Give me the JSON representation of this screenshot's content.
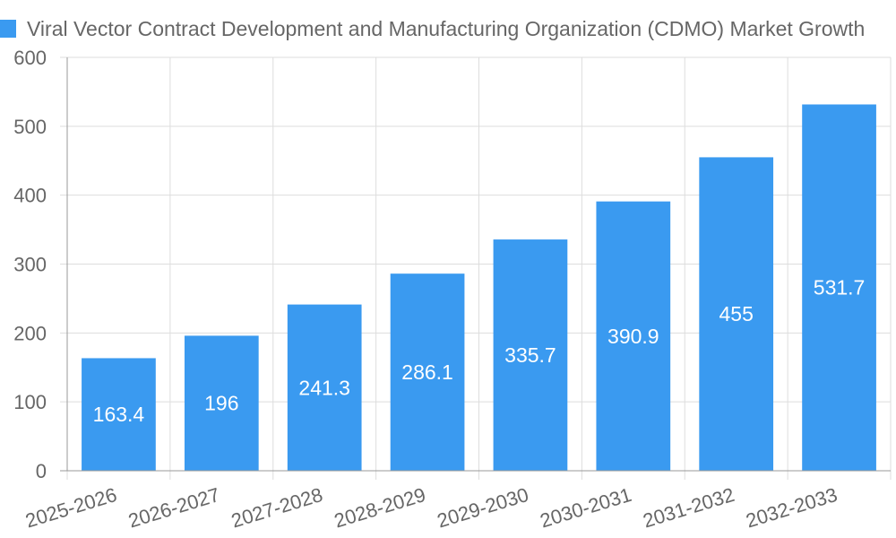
{
  "chart_data": {
    "type": "bar",
    "legend": {
      "label": "Viral Vector Contract Development and Manufacturing Organization (CDMO) Market Growth",
      "placement": "top-left"
    },
    "categories": [
      "2025-2026",
      "2026-2027",
      "2027-2028",
      "2028-2029",
      "2029-2030",
      "2030-2031",
      "2031-2032",
      "2032-2033"
    ],
    "series": [
      {
        "name": "Viral Vector Contract Development and Manufacturing Organization (CDMO) Market Growth",
        "values": [
          163.4,
          196,
          241.3,
          286.1,
          335.7,
          390.9,
          455,
          531.7
        ]
      }
    ],
    "ylim": [
      0,
      600
    ],
    "yticks": [
      0,
      100,
      200,
      300,
      400,
      500,
      600
    ],
    "grid": true,
    "data_labels": true,
    "colors": {
      "bar": "#3a9af0",
      "grid": "#dddddd",
      "axis_text": "#666666",
      "data_label": "#ffffff"
    }
  }
}
